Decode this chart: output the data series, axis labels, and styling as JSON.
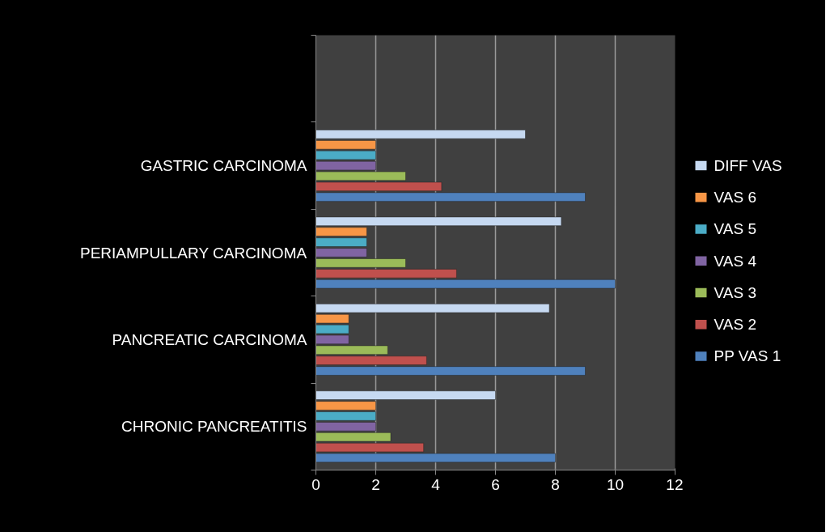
{
  "chart_data": {
    "type": "bar",
    "orientation": "horizontal",
    "categories": [
      null,
      "GASTRIC CARCINOMA",
      "PERIAMPULLARY CARCINOMA",
      "PANCREATIC CARCINOMA",
      "CHRONIC PANCREATITIS"
    ],
    "series": [
      {
        "name": "PP VAS 1",
        "color": "#4f81bd",
        "values": [
          null,
          9,
          10,
          9,
          8
        ]
      },
      {
        "name": "VAS 2",
        "color": "#c0504d",
        "values": [
          null,
          4.2,
          4.7,
          3.7,
          3.6
        ]
      },
      {
        "name": "VAS 3",
        "color": "#9bbb59",
        "values": [
          null,
          3,
          3,
          2.4,
          2.5
        ]
      },
      {
        "name": "VAS 4",
        "color": "#8064a2",
        "values": [
          null,
          2,
          1.7,
          1.1,
          2
        ]
      },
      {
        "name": "VAS 5",
        "color": "#4bacc6",
        "values": [
          null,
          2,
          1.7,
          1.1,
          2
        ]
      },
      {
        "name": "VAS 6",
        "color": "#f79646",
        "values": [
          null,
          2,
          1.7,
          1.1,
          2
        ]
      },
      {
        "name": "DIFF VAS",
        "color": "#c6d9f1",
        "values": [
          null,
          7,
          8.2,
          7.8,
          6
        ]
      }
    ],
    "xlim": [
      0,
      12
    ],
    "xticks": [
      0,
      2,
      4,
      6,
      8,
      10,
      12
    ],
    "grid": "x",
    "legend": "right"
  }
}
